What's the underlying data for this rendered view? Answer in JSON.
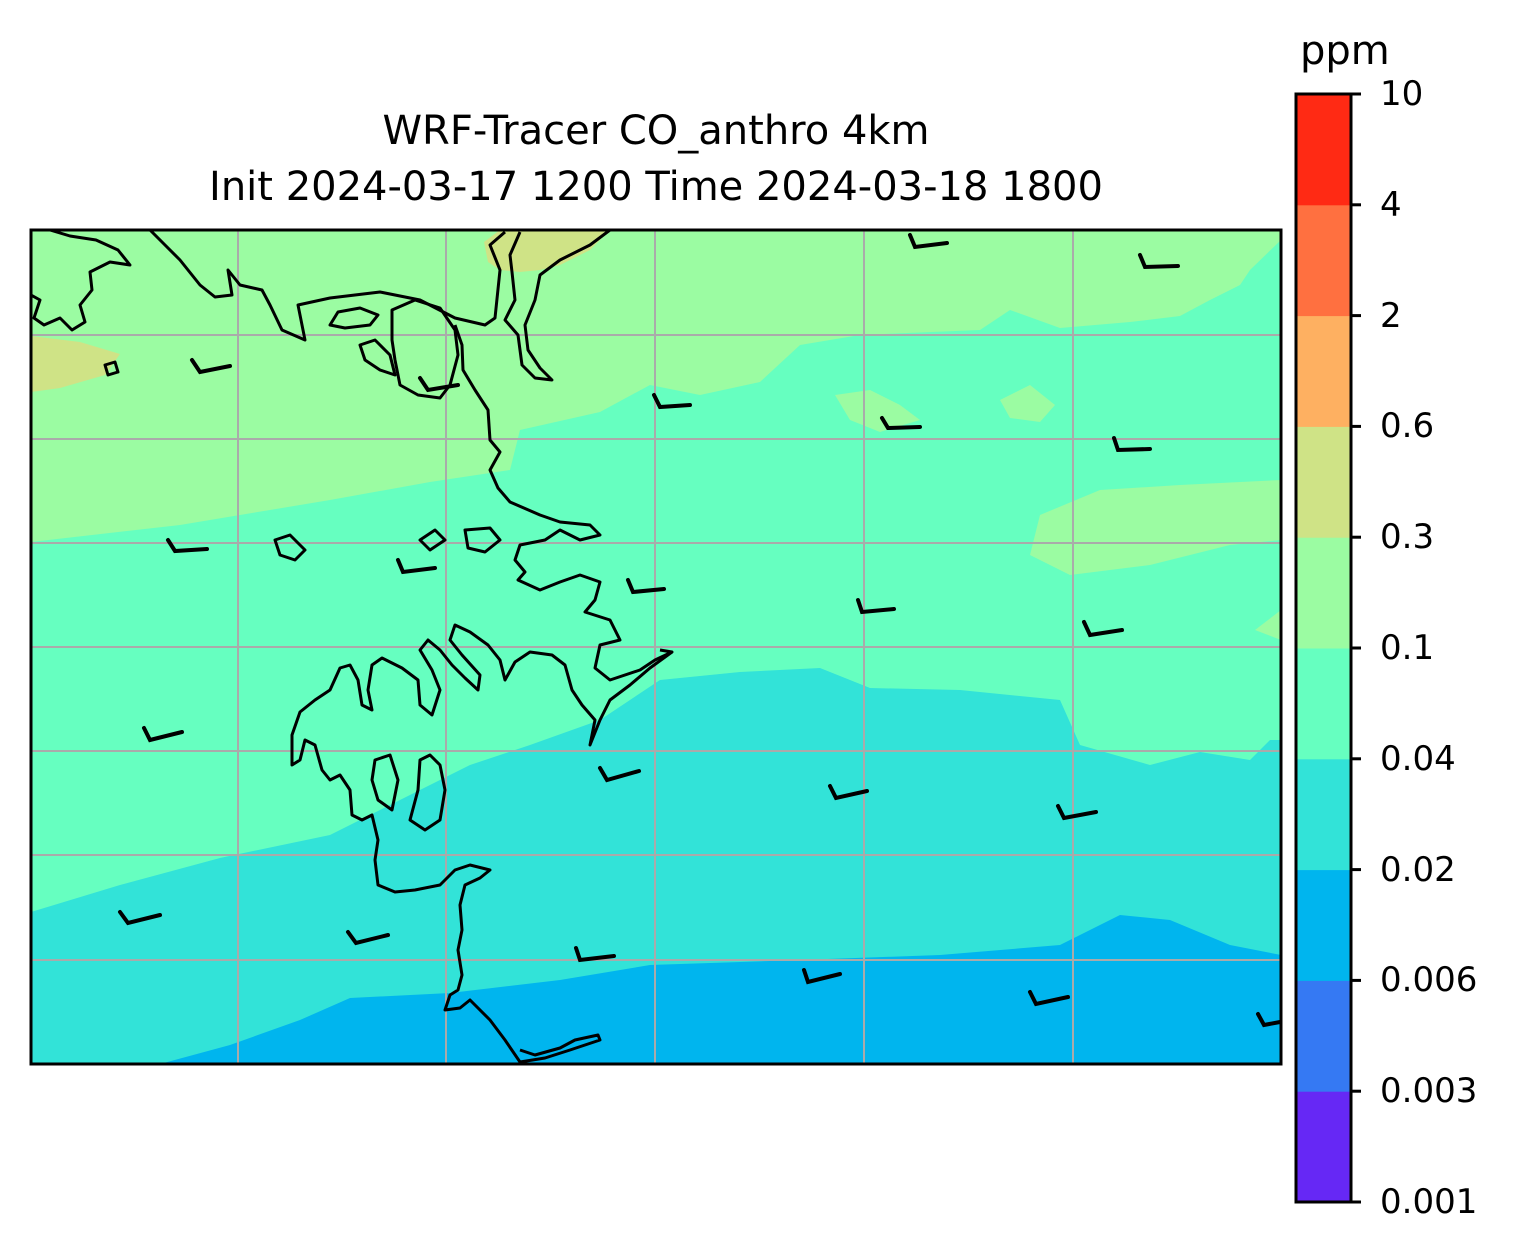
{
  "title": {
    "line1": "WRF-Tracer CO_anthro 4km",
    "line2": "Init 2024-03-17 1200 Time 2024-03-18 1800"
  },
  "colorbar": {
    "unit": "ppm",
    "levels": [
      "0.001",
      "0.003",
      "0.006",
      "0.02",
      "0.04",
      "0.1",
      "0.3",
      "0.6",
      "2",
      "4",
      "10"
    ],
    "colors": [
      "#6628f5",
      "#3579f3",
      "#00b5ee",
      "#32e3d8",
      "#66ffc0",
      "#9bfca2",
      "#cfe386",
      "#feb061",
      "#ff7040",
      "#ff2a14"
    ]
  },
  "map": {
    "contour_colors": {
      "0.006-0.02": "#00b5ee",
      "0.02-0.04": "#32e3d8",
      "0.04-0.1": "#66ffc0",
      "0.1-0.3": "#9bfca2",
      "0.3-0.6": "#cfe386"
    },
    "coastline_color": "#000000",
    "gridline_color": "#aaaaaa",
    "wind_barbs": "short barbs, winds from the west-northwest"
  }
}
